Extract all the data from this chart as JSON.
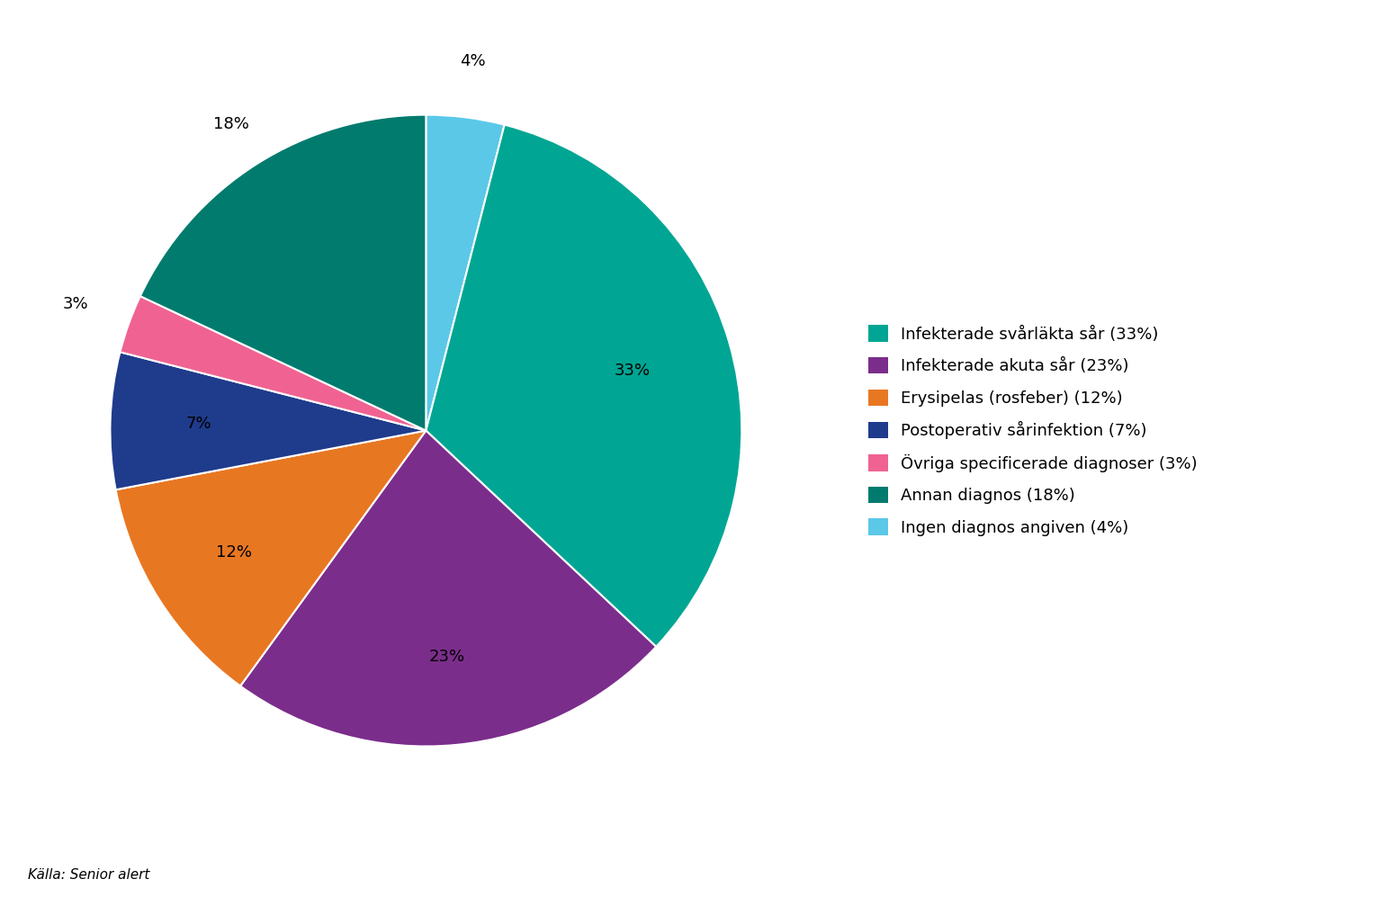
{
  "labels": [
    "Infekterade svårläkta sår (33%)",
    "Infekterade akuta sår (23%)",
    "Erysipelas (rosfeber) (12%)",
    "Postoperativ sårinfektion (7%)",
    "Övriga specificerade diagnoser (3%)",
    "Annan diagnos (18%)",
    "Ingen diagnos angiven (4%)"
  ],
  "values": [
    33,
    23,
    12,
    7,
    3,
    18,
    4
  ],
  "colors": [
    "#00A693",
    "#7B2D8B",
    "#E87722",
    "#1F3B8C",
    "#F06292",
    "#007B6E",
    "#5BC8E8"
  ],
  "pct_labels": [
    "33%",
    "23%",
    "12%",
    "7%",
    "3%",
    "18%",
    "4%"
  ],
  "source": "Källa: Senior alert",
  "background_color": "#FFFFFF",
  "legend_fontsize": 13,
  "pct_fontsize": 13
}
